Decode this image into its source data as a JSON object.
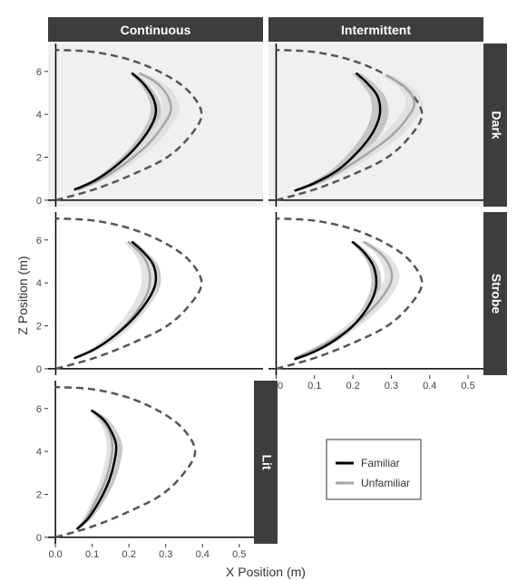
{
  "figure": {
    "xlabel": "X Position (m)",
    "ylabel": "Z Position (m)",
    "col_titles": [
      "Continuous",
      "Intermittent"
    ],
    "row_titles": [
      "Dark",
      "Strobe",
      "Lit"
    ],
    "legend": {
      "items": [
        {
          "label": "Familiar",
          "color": "#000000"
        },
        {
          "label": "Unfamiliar",
          "color": "#a6a6a6"
        }
      ]
    },
    "colors": {
      "strip_bg": "#3d3d3d",
      "strip_text": "#ffffff",
      "dark_panel_bg": "#f0f0f0",
      "reference": "#555555",
      "familiar_band": "#bdbdbd",
      "unfamiliar_band": "#dedede"
    }
  },
  "chart_data": {
    "type": "line",
    "xlim": [
      -0.02,
      0.54
    ],
    "ylim": [
      -0.3,
      7.3
    ],
    "x_ticks": [
      0.0,
      0.1,
      0.2,
      0.3,
      0.4,
      0.5
    ],
    "x_tick_labels": [
      "0.0",
      "0.1",
      "0.2",
      "0.3",
      "0.4",
      "0.5"
    ],
    "y_ticks": [
      0,
      2,
      4,
      6
    ],
    "y_tick_labels": [
      "0",
      "2",
      "4",
      "6"
    ],
    "reference_path": [
      [
        0.0,
        0.0
      ],
      [
        0.1,
        0.5
      ],
      [
        0.2,
        1.2
      ],
      [
        0.29,
        2.0
      ],
      [
        0.35,
        3.0
      ],
      [
        0.38,
        4.0
      ],
      [
        0.35,
        5.0
      ],
      [
        0.29,
        5.8
      ],
      [
        0.2,
        6.5
      ],
      [
        0.1,
        6.9
      ],
      [
        0.0,
        7.0
      ]
    ],
    "panels": [
      {
        "row": "Dark",
        "col": "Continuous",
        "series": [
          {
            "name": "Familiar",
            "path": [
              [
                0.05,
                0.5
              ],
              [
                0.1,
                0.9
              ],
              [
                0.15,
                1.5
              ],
              [
                0.2,
                2.3
              ],
              [
                0.24,
                3.2
              ],
              [
                0.26,
                4.0
              ],
              [
                0.255,
                4.7
              ],
              [
                0.23,
                5.4
              ],
              [
                0.2,
                5.9
              ]
            ],
            "band_half_width": 0.013
          },
          {
            "name": "Unfamiliar",
            "path": [
              [
                0.06,
                0.5
              ],
              [
                0.12,
                1.0
              ],
              [
                0.18,
                1.7
              ],
              [
                0.24,
                2.6
              ],
              [
                0.28,
                3.5
              ],
              [
                0.3,
                4.2
              ],
              [
                0.29,
                4.9
              ],
              [
                0.26,
                5.5
              ],
              [
                0.22,
                5.9
              ]
            ],
            "band_half_width": 0.02
          }
        ]
      },
      {
        "row": "Dark",
        "col": "Intermittent",
        "series": [
          {
            "name": "Familiar",
            "path": [
              [
                0.05,
                0.45
              ],
              [
                0.1,
                0.8
              ],
              [
                0.16,
                1.4
              ],
              [
                0.21,
                2.2
              ],
              [
                0.25,
                3.1
              ],
              [
                0.27,
                4.0
              ],
              [
                0.265,
                4.8
              ],
              [
                0.24,
                5.4
              ],
              [
                0.21,
                5.9
              ]
            ],
            "band_half_width": 0.02
          },
          {
            "name": "Unfamiliar",
            "path": [
              [
                0.06,
                0.5
              ],
              [
                0.12,
                0.9
              ],
              [
                0.18,
                1.5
              ],
              [
                0.24,
                2.2
              ],
              [
                0.3,
                3.0
              ],
              [
                0.34,
                3.8
              ],
              [
                0.36,
                4.5
              ],
              [
                0.34,
                5.2
              ],
              [
                0.29,
                5.8
              ]
            ],
            "band_half_width": 0.022
          }
        ]
      },
      {
        "row": "Strobe",
        "col": "Continuous",
        "series": [
          {
            "name": "Familiar",
            "path": [
              [
                0.05,
                0.5
              ],
              [
                0.1,
                0.9
              ],
              [
                0.15,
                1.5
              ],
              [
                0.2,
                2.3
              ],
              [
                0.24,
                3.2
              ],
              [
                0.26,
                4.0
              ],
              [
                0.255,
                4.8
              ],
              [
                0.23,
                5.4
              ],
              [
                0.2,
                5.9
              ]
            ],
            "band_half_width": 0.012
          },
          {
            "name": "Unfamiliar",
            "path": [
              [
                0.05,
                0.5
              ],
              [
                0.1,
                0.9
              ],
              [
                0.15,
                1.5
              ],
              [
                0.195,
                2.3
              ],
              [
                0.23,
                3.2
              ],
              [
                0.245,
                4.0
              ],
              [
                0.24,
                4.8
              ],
              [
                0.22,
                5.4
              ],
              [
                0.19,
                5.9
              ]
            ],
            "band_half_width": 0.02
          }
        ]
      },
      {
        "row": "Strobe",
        "col": "Intermittent",
        "series": [
          {
            "name": "Familiar",
            "path": [
              [
                0.05,
                0.45
              ],
              [
                0.1,
                0.8
              ],
              [
                0.15,
                1.3
              ],
              [
                0.2,
                2.0
              ],
              [
                0.24,
                2.9
              ],
              [
                0.26,
                3.8
              ],
              [
                0.255,
                4.7
              ],
              [
                0.23,
                5.4
              ],
              [
                0.2,
                5.9
              ]
            ],
            "band_half_width": 0.012
          },
          {
            "name": "Unfamiliar",
            "path": [
              [
                0.05,
                0.5
              ],
              [
                0.1,
                0.9
              ],
              [
                0.16,
                1.5
              ],
              [
                0.22,
                2.3
              ],
              [
                0.27,
                3.2
              ],
              [
                0.3,
                4.1
              ],
              [
                0.295,
                4.8
              ],
              [
                0.27,
                5.4
              ],
              [
                0.23,
                5.9
              ]
            ],
            "band_half_width": 0.018
          }
        ]
      },
      {
        "row": "Lit",
        "col": "Continuous",
        "series": [
          {
            "name": "Familiar",
            "path": [
              [
                0.06,
                0.4
              ],
              [
                0.09,
                0.9
              ],
              [
                0.12,
                1.7
              ],
              [
                0.145,
                2.6
              ],
              [
                0.16,
                3.5
              ],
              [
                0.165,
                4.3
              ],
              [
                0.15,
                5.0
              ],
              [
                0.13,
                5.5
              ],
              [
                0.1,
                5.9
              ]
            ],
            "band_half_width": 0.015
          },
          {
            "name": "Unfamiliar",
            "path": [
              [
                0.06,
                0.4
              ],
              [
                0.085,
                0.9
              ],
              [
                0.11,
                1.7
              ],
              [
                0.135,
                2.6
              ],
              [
                0.15,
                3.5
              ],
              [
                0.155,
                4.3
              ],
              [
                0.145,
                5.0
              ],
              [
                0.125,
                5.5
              ],
              [
                0.1,
                5.9
              ]
            ],
            "band_half_width": 0.014
          }
        ]
      }
    ]
  }
}
